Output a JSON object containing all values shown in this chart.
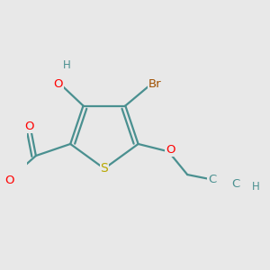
{
  "background_color": "#e8e8e8",
  "atom_colors": {
    "S": "#b8a800",
    "O": "#ff0000",
    "Br": "#a05000",
    "H": "#4a9090",
    "C": "#4a9090"
  },
  "bond_color": "#4a9090",
  "lw": 1.6,
  "dbo": 0.055,
  "figsize": [
    3.0,
    3.0
  ],
  "dpi": 100
}
